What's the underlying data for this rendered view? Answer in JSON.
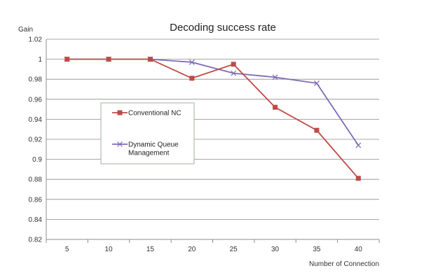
{
  "chart_data": {
    "type": "line",
    "title": "Decoding success rate",
    "ylabel": "Gain",
    "xlabel": "Number of Connection",
    "categories": [
      "5",
      "10",
      "15",
      "20",
      "25",
      "30",
      "35",
      "40"
    ],
    "ylim": [
      0.82,
      1.02
    ],
    "yticks": [
      "0.82",
      "0.84",
      "0.86",
      "0.88",
      "0.9",
      "0.92",
      "0.94",
      "0.96",
      "0.98",
      "1",
      "1.02"
    ],
    "grid": "horizontal",
    "legend_position": "center-left",
    "series": [
      {
        "name": "Conventional NC",
        "values": [
          1.0,
          1.0,
          1.0,
          0.981,
          0.995,
          0.952,
          0.929,
          0.881
        ],
        "color": "#be4b48",
        "marker": "square"
      },
      {
        "name": "Dynamic Queue Management",
        "values": [
          1.0,
          1.0,
          1.0,
          0.997,
          0.986,
          0.982,
          0.976,
          0.914
        ],
        "color": "#7e6bb4",
        "marker": "x"
      }
    ]
  }
}
